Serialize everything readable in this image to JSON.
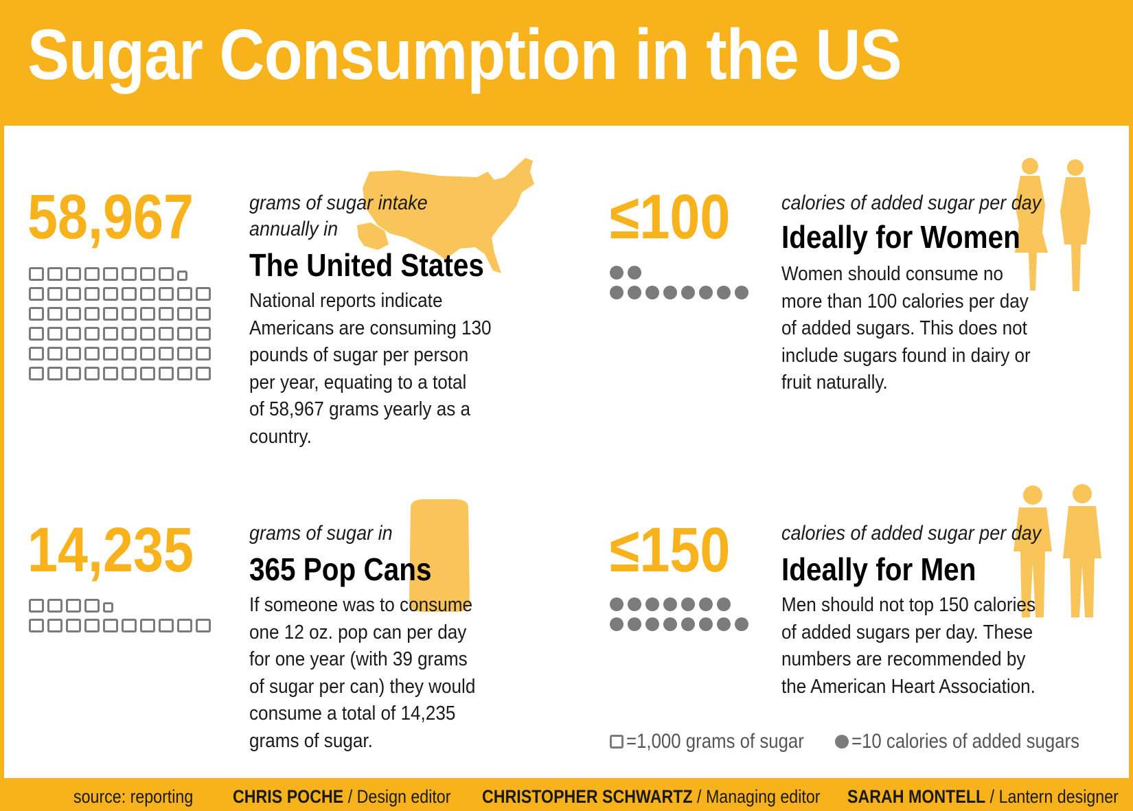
{
  "title": "Sugar Consumption in the US",
  "colors": {
    "accent": "#f7b21c",
    "icon_gray": "#7b7b7b",
    "silhouette": "#f9c45a"
  },
  "us": {
    "value": "58,967",
    "subtitle_line1": "grams of sugar intake",
    "subtitle_line2": "annually in",
    "heading": "The United States",
    "body": "National reports indicate\nAmericans are consuming 130\npounds of sugar per person\nper year, equating to a total\nof 58,967 grams yearly as a\ncountry.",
    "squares_full": 58,
    "squares_partial": 1
  },
  "pop": {
    "value": "14,235",
    "subtitle": "grams of sugar in",
    "heading": "365 Pop Cans",
    "body": "If someone was to consume\none 12 oz. pop can per day\nfor one year (with 39 grams\nof sugar per can) they would\nconsume a total of 14,235\ngrams of sugar.",
    "squares_full": 14,
    "squares_partial": 1
  },
  "women": {
    "value": "≤100",
    "subtitle": "calories of added sugar per day",
    "heading": "Ideally for Women",
    "body": "Women should consume no\nmore than 100 calories per day\nof added sugars. This does not\ninclude sugars found in dairy or\nfruit naturally.",
    "dots": 10
  },
  "men": {
    "value": "≤150",
    "subtitle": "calories of added sugar per day",
    "heading": "Ideally for Men",
    "body": "Men should not top 150 calories\nof added sugars per day. These\nnumbers are recommended by\nthe American Heart Association.",
    "dots": 15
  },
  "legend": {
    "square_label": "=1,000 grams of sugar",
    "dot_label": "=10 calories of added sugars"
  },
  "footer": {
    "source": "source: reporting",
    "credit1_name": "CHRIS POCHE",
    "credit1_role": " / Design editor",
    "credit2_name": "CHRISTOPHER SCHWARTZ",
    "credit2_role": " / Managing editor",
    "credit3_name": "SARAH MONTELL",
    "credit3_role": " / Lantern designer"
  }
}
